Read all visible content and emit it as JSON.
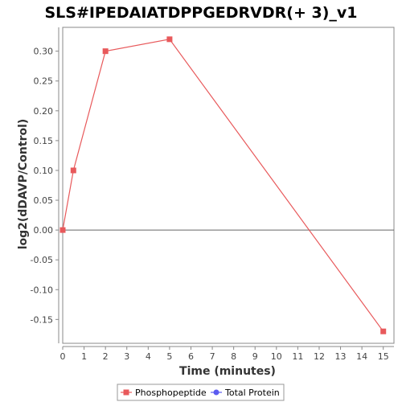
{
  "chart_data": {
    "type": "line",
    "title": "SLS#IPEDAIATDPPGEDRVDR(+ 3)_v1",
    "xlabel": "Time (minutes)",
    "ylabel": "log2(dDAVP/Control)",
    "xlim": [
      0,
      15.5
    ],
    "ylim": [
      -0.19,
      0.34
    ],
    "xticks": [
      0,
      1,
      2,
      3,
      4,
      5,
      6,
      7,
      8,
      9,
      10,
      11,
      12,
      13,
      14,
      15
    ],
    "yticks": [
      -0.15,
      -0.1,
      -0.05,
      0.0,
      0.05,
      0.1,
      0.15,
      0.2,
      0.25,
      0.3
    ],
    "ytick_labels": [
      "-0.15",
      "-0.10",
      "-0.05",
      "0.00",
      "0.05",
      "0.10",
      "0.15",
      "0.20",
      "0.25",
      "0.30"
    ],
    "zero_line": true,
    "grid": false,
    "legend_position": "bottom",
    "series": [
      {
        "name": "Phosphopeptide",
        "color": "#e8595b",
        "marker": "square",
        "x": [
          0,
          0.5,
          2,
          5,
          15
        ],
        "y": [
          0.0,
          0.1,
          0.3,
          0.32,
          -0.17
        ]
      },
      {
        "name": "Total Protein",
        "color": "#5b5bf0",
        "marker": "circle",
        "x": [],
        "y": []
      }
    ]
  }
}
